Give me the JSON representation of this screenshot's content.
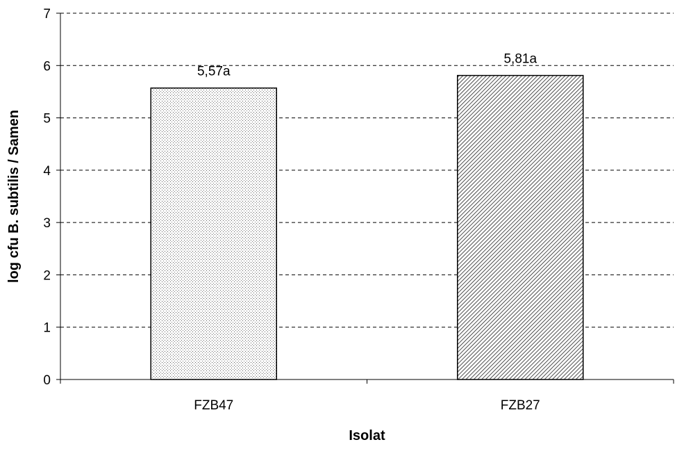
{
  "chart_data": {
    "type": "bar",
    "categories": [
      "FZB47",
      "FZB27"
    ],
    "values": [
      5.57,
      5.81
    ],
    "data_labels": [
      "5,57a",
      "5,81a"
    ],
    "bar_patterns": [
      "dots",
      "diagonal-hatch"
    ],
    "xlabel": "Isolat",
    "ylabel": "log cfu B. subtilis / Samen",
    "ylim": [
      0,
      7
    ],
    "yticks": [
      "0",
      "1",
      "2",
      "3",
      "4",
      "5",
      "6",
      "7"
    ],
    "grid": "horizontal dashed",
    "legend": "none"
  },
  "colors": {
    "bar_fill": "#ffffff",
    "bar_stroke": "#000000",
    "grid": "#000000",
    "axis": "#000000"
  }
}
